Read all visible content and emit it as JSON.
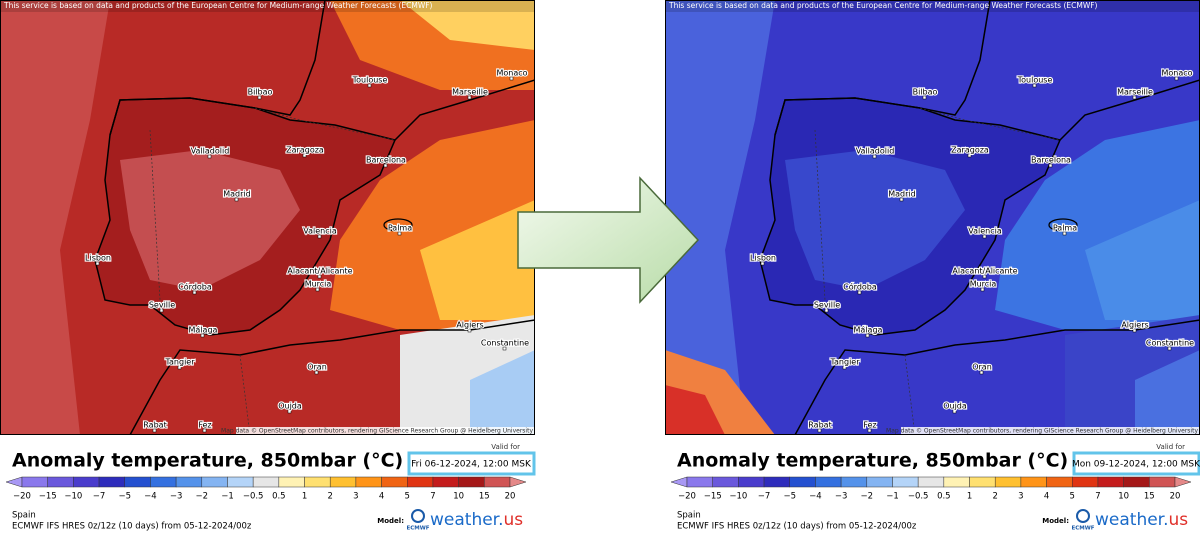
{
  "header": "This service is based on data and products of the European Centre for Medium-range Weather Forecasts (ECMWF)",
  "attribution": "Map data © OpenStreetMap contributors, rendering GIScience Research Group @ Heidelberg University",
  "title": "Anomaly  temperature, 850mbar (°C)",
  "valid_label": "Valid for",
  "region": "Spain",
  "model_info": "ECMWF IFS HRES 0z/12z (10 days) from  05-12-2024/00z",
  "model_label": "Model:",
  "model_logo": "ECMWF",
  "brand": {
    "name": "weather.",
    "tld": "us"
  },
  "legend": {
    "ticks": [
      "−20",
      "−15",
      "−10",
      "−7",
      "−5",
      "−4",
      "−3",
      "−2",
      "−1",
      "−0.5",
      "0.5",
      "1",
      "2",
      "3",
      "4",
      "5",
      "7",
      "10",
      "15",
      "20"
    ],
    "colors": [
      "#a898f4",
      "#8a78ec",
      "#6a58dc",
      "#4a3ccc",
      "#2e2cbc",
      "#2450d0",
      "#3470e0",
      "#5492ea",
      "#84b4f2",
      "#b4d4f8",
      "#e6e6e6",
      "#fff2b4",
      "#ffe070",
      "#ffc030",
      "#ff9418",
      "#f06414",
      "#e03412",
      "#c41c1c",
      "#a41818",
      "#d05454",
      "#e48888"
    ]
  },
  "cities": [
    {
      "name": "Bilbao"
    },
    {
      "name": "Toulouse"
    },
    {
      "name": "Marseille"
    },
    {
      "name": "Monaco"
    },
    {
      "name": "Valladolid"
    },
    {
      "name": "Zaragoza"
    },
    {
      "name": "Barcelona"
    },
    {
      "name": "Madrid"
    },
    {
      "name": "Valencia"
    },
    {
      "name": "Palma"
    },
    {
      "name": "Lisbon"
    },
    {
      "name": "Alacant/Alicante"
    },
    {
      "name": "Córdoba"
    },
    {
      "name": "Murcia"
    },
    {
      "name": "Seville"
    },
    {
      "name": "Málaga"
    },
    {
      "name": "Algiers"
    },
    {
      "name": "Constantine"
    },
    {
      "name": "Tangier"
    },
    {
      "name": "Oran"
    },
    {
      "name": "Oujda"
    },
    {
      "name": "Rabat"
    },
    {
      "name": "Fez"
    }
  ],
  "panels": [
    {
      "date": "Fri 06-12-2024, 12:00 MSK"
    },
    {
      "date": "Mon 09-12-2024, 12:00 MSK"
    }
  ]
}
